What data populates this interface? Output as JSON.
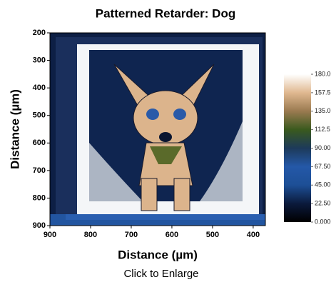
{
  "chart_data": {
    "type": "heatmap",
    "title": "Patterned Retarder: Dog",
    "x_label": "Distance (µm)",
    "y_label": "Distance (µm)",
    "caption": "Click to Enlarge",
    "xlim": [
      900,
      370
    ],
    "xticks": [
      900,
      800,
      700,
      600,
      500,
      400
    ],
    "ylim": [
      900,
      200
    ],
    "yticks": [
      200,
      300,
      400,
      500,
      600,
      700,
      800,
      900
    ],
    "colorbar_lim": [
      0,
      180
    ],
    "colorbar_ticks": [
      {
        "value": 0,
        "label": "0.000"
      },
      {
        "value": 22.5,
        "label": "22.50"
      },
      {
        "value": 45,
        "label": "45.00"
      },
      {
        "value": 67.5,
        "label": "67.50"
      },
      {
        "value": 90,
        "label": "90.00"
      },
      {
        "value": 112.5,
        "label": "112.5"
      },
      {
        "value": 135,
        "label": "135.0"
      },
      {
        "value": 157.5,
        "label": "157.5"
      },
      {
        "value": 180,
        "label": "180.0"
      }
    ],
    "colorscale": [
      "#000000",
      "#0b1a3c",
      "#1d4f96",
      "#2458a8",
      "#1d3a5a",
      "#3a5a1e",
      "#9a7a50",
      "#e0b890",
      "#ffffff"
    ]
  }
}
